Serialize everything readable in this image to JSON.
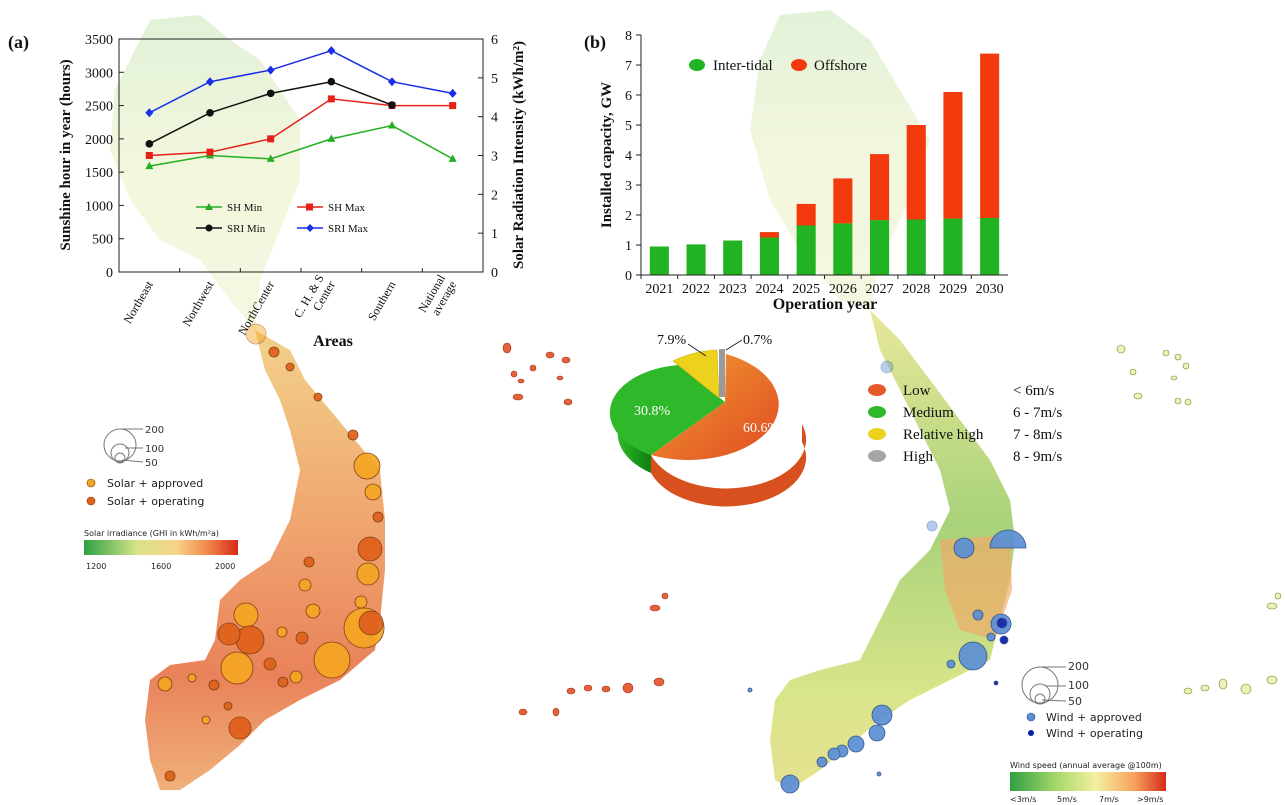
{
  "panel_labels": {
    "a": "(a)",
    "b": "(b)"
  },
  "chart_data": [
    {
      "id": "sunshine",
      "type": "line",
      "categories": [
        "Northeast",
        "Northwest",
        "NorthCenter",
        "C. H. & S\nCenter",
        "Southern",
        "National\naverage"
      ],
      "xlabel": "Areas",
      "ylabel": "Sunshine hour in year (hours)",
      "ylabel2": "Solar Radiation Intensity (kWh/m²)",
      "ylim": [
        0,
        3500
      ],
      "ylim2": [
        0,
        6
      ],
      "yticks": [
        0,
        500,
        1000,
        1500,
        2000,
        2500,
        3000,
        3500
      ],
      "yticks2": [
        0,
        1,
        2,
        3,
        4,
        5,
        6
      ],
      "series": [
        {
          "name": "SH Min",
          "axis": "left",
          "color": "#22b022",
          "marker": "triangle",
          "values": [
            1590,
            1750,
            1700,
            2000,
            2200,
            1700
          ]
        },
        {
          "name": "SH Max",
          "axis": "left",
          "color": "#e8201a",
          "marker": "square",
          "values": [
            1750,
            1800,
            2000,
            2600,
            2500,
            2500
          ]
        },
        {
          "name": "SRI Min",
          "axis": "right",
          "color": "#111111",
          "marker": "circle",
          "values": [
            3.3,
            4.1,
            4.6,
            4.9,
            4.3,
            null
          ]
        },
        {
          "name": "SRI Max",
          "axis": "right",
          "color": "#1a2ee8",
          "marker": "diamond",
          "values": [
            4.1,
            4.9,
            5.2,
            5.7,
            4.9,
            4.6
          ]
        }
      ]
    },
    {
      "id": "capacity",
      "type": "bar",
      "stacked": true,
      "categories": [
        "2021",
        "2022",
        "2023",
        "2024",
        "2025",
        "2026",
        "2027",
        "2028",
        "2029",
        "2030"
      ],
      "xlabel": "Operation year",
      "ylabel": "Installed capacity, GW",
      "ylim": [
        0,
        8
      ],
      "yticks": [
        0,
        1,
        2,
        3,
        4,
        5,
        6,
        7,
        8
      ],
      "series": [
        {
          "name": "Inter-tidal",
          "color": "#21b321",
          "values": [
            0.95,
            1.02,
            1.15,
            1.25,
            1.65,
            1.72,
            1.83,
            1.85,
            1.88,
            1.9
          ]
        },
        {
          "name": "Offshore",
          "color": "#f23a0c",
          "values": [
            0,
            0,
            0,
            0.18,
            0.72,
            1.5,
            2.2,
            3.15,
            4.22,
            5.48
          ]
        }
      ]
    },
    {
      "id": "wind-share",
      "type": "pie",
      "slices": [
        {
          "label": "Low",
          "range": "< 6m/s",
          "value": 60.6,
          "text": "60.6%",
          "color": "#e65a2a"
        },
        {
          "label": "Medium",
          "range": "6 - 7m/s",
          "value": 30.8,
          "text": "30.8%",
          "color": "#2fb82a"
        },
        {
          "label": "Relative high",
          "range": "7 - 8m/s",
          "value": 7.9,
          "text": "7.9%",
          "color": "#ecd21c"
        },
        {
          "label": "High",
          "range": "8 - 9m/s",
          "value": 0.7,
          "text": "0.7%",
          "color": "#a6a6a6"
        }
      ]
    }
  ],
  "solar_map": {
    "size_legend": [
      "200",
      "100",
      "50"
    ],
    "legend": [
      {
        "label": "Solar + approved",
        "color": "#f5a623"
      },
      {
        "label": "Solar + operating",
        "color": "#e0601a"
      }
    ],
    "scale_title": "Solar irradiance (GHI in kWh/m²a)",
    "scale_ticks": [
      "1200",
      "1600",
      "2000"
    ]
  },
  "wind_map": {
    "size_legend": [
      "200",
      "100",
      "50"
    ],
    "legend": [
      {
        "label": "Wind + approved",
        "color": "#5b8fd6"
      },
      {
        "label": "Wind + operating",
        "color": "#0a1fa8"
      }
    ],
    "scale_title": "Wind speed (annual average @100m)",
    "scale_ticks": [
      "<3m/s",
      "5m/s",
      "7m/s",
      ">9m/s"
    ]
  }
}
